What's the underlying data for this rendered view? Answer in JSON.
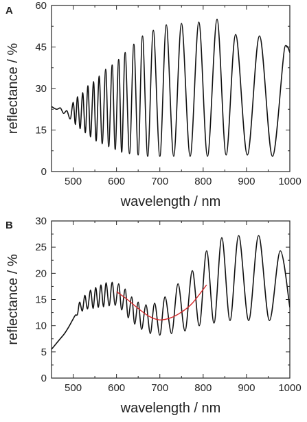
{
  "chart_data": [
    {
      "panel_label": "A",
      "type": "line",
      "title": "",
      "xlabel": "wavelength / nm",
      "ylabel": "reflectance / %",
      "xlim": [
        450,
        1000
      ],
      "ylim": [
        0,
        60
      ],
      "xticks": [
        500,
        600,
        700,
        800,
        900,
        1000
      ],
      "yticks": [
        0,
        15,
        30,
        45,
        60
      ],
      "grid": false,
      "legend": "none",
      "series": [
        {
          "color": "#111111",
          "peaks": [
            {
              "x": 450,
              "y": 23.5
            },
            {
              "x": 470,
              "y": 23
            },
            {
              "x": 485,
              "y": 22
            },
            {
              "x": 500,
              "y": 25
            },
            {
              "x": 510,
              "y": 27
            },
            {
              "x": 522,
              "y": 28.5
            },
            {
              "x": 534,
              "y": 31
            },
            {
              "x": 547,
              "y": 32.5
            },
            {
              "x": 560,
              "y": 34.5
            },
            {
              "x": 575,
              "y": 37
            },
            {
              "x": 590,
              "y": 38.5
            },
            {
              "x": 605,
              "y": 40.5
            },
            {
              "x": 620,
              "y": 43
            },
            {
              "x": 640,
              "y": 46
            },
            {
              "x": 660,
              "y": 49
            },
            {
              "x": 685,
              "y": 51
            },
            {
              "x": 715,
              "y": 53
            },
            {
              "x": 750,
              "y": 53.5
            },
            {
              "x": 790,
              "y": 54
            },
            {
              "x": 832,
              "y": 55
            },
            {
              "x": 875,
              "y": 49.5
            },
            {
              "x": 930,
              "y": 49
            },
            {
              "x": 990,
              "y": 45.5
            },
            {
              "x": 1000,
              "y": 43
            }
          ],
          "troughs": [
            {
              "x": 462,
              "y": 22.5
            },
            {
              "x": 478,
              "y": 21
            },
            {
              "x": 493,
              "y": 19
            },
            {
              "x": 505,
              "y": 17
            },
            {
              "x": 516,
              "y": 15.5
            },
            {
              "x": 528,
              "y": 14
            },
            {
              "x": 540,
              "y": 12.5
            },
            {
              "x": 553,
              "y": 11
            },
            {
              "x": 567,
              "y": 10
            },
            {
              "x": 582,
              "y": 9
            },
            {
              "x": 597,
              "y": 8
            },
            {
              "x": 612,
              "y": 7
            },
            {
              "x": 630,
              "y": 6.5
            },
            {
              "x": 650,
              "y": 6
            },
            {
              "x": 672,
              "y": 5.5
            },
            {
              "x": 700,
              "y": 5.5
            },
            {
              "x": 732,
              "y": 5.5
            },
            {
              "x": 770,
              "y": 5.5
            },
            {
              "x": 810,
              "y": 5.5
            },
            {
              "x": 853,
              "y": 6
            },
            {
              "x": 902,
              "y": 6
            },
            {
              "x": 960,
              "y": 5.5
            }
          ]
        }
      ]
    },
    {
      "panel_label": "B",
      "type": "line",
      "title": "",
      "xlabel": "wavelength / nm",
      "ylabel": "reflectance / %",
      "xlim": [
        450,
        1000
      ],
      "ylim": [
        0,
        30
      ],
      "xticks": [
        500,
        600,
        700,
        800,
        900,
        1000
      ],
      "yticks": [
        0,
        5,
        10,
        15,
        20,
        25,
        30
      ],
      "grid": false,
      "legend": "none",
      "series": [
        {
          "color": "#111111",
          "points": [
            {
              "x": 450,
              "y": 5.5
            },
            {
              "x": 460,
              "y": 6.5
            },
            {
              "x": 470,
              "y": 7.5
            },
            {
              "x": 480,
              "y": 8.5
            },
            {
              "x": 490,
              "y": 9.8
            },
            {
              "x": 498,
              "y": 11
            }
          ],
          "peaks": [
            {
              "x": 505,
              "y": 12
            },
            {
              "x": 515,
              "y": 14.5
            },
            {
              "x": 527,
              "y": 15.8
            },
            {
              "x": 540,
              "y": 16.8
            },
            {
              "x": 552,
              "y": 17.3
            },
            {
              "x": 564,
              "y": 17.8
            },
            {
              "x": 576,
              "y": 18.2
            },
            {
              "x": 590,
              "y": 18.3
            },
            {
              "x": 605,
              "y": 18
            },
            {
              "x": 620,
              "y": 17
            },
            {
              "x": 635,
              "y": 15.5
            },
            {
              "x": 650,
              "y": 14.5
            },
            {
              "x": 668,
              "y": 14
            },
            {
              "x": 688,
              "y": 14.3
            },
            {
              "x": 712,
              "y": 15.5
            },
            {
              "x": 742,
              "y": 18
            },
            {
              "x": 775,
              "y": 20.5
            },
            {
              "x": 808,
              "y": 24.3
            },
            {
              "x": 843,
              "y": 26.8
            },
            {
              "x": 882,
              "y": 27.2
            },
            {
              "x": 928,
              "y": 27.2
            },
            {
              "x": 978,
              "y": 24.3
            },
            {
              "x": 1000,
              "y": 13.5
            }
          ],
          "troughs": [
            {
              "x": 510,
              "y": 12.2
            },
            {
              "x": 521,
              "y": 12.8
            },
            {
              "x": 533,
              "y": 13.2
            },
            {
              "x": 546,
              "y": 13.3
            },
            {
              "x": 558,
              "y": 13.5
            },
            {
              "x": 570,
              "y": 13.6
            },
            {
              "x": 583,
              "y": 13.8
            },
            {
              "x": 597,
              "y": 13.9
            },
            {
              "x": 612,
              "y": 13
            },
            {
              "x": 627,
              "y": 11.5
            },
            {
              "x": 642,
              "y": 10.3
            },
            {
              "x": 658,
              "y": 9.3
            },
            {
              "x": 678,
              "y": 8.5
            },
            {
              "x": 700,
              "y": 8.2
            },
            {
              "x": 727,
              "y": 8.5
            },
            {
              "x": 758,
              "y": 9
            },
            {
              "x": 791,
              "y": 10
            },
            {
              "x": 825,
              "y": 10.5
            },
            {
              "x": 862,
              "y": 11
            },
            {
              "x": 905,
              "y": 11
            },
            {
              "x": 953,
              "y": 11
            }
          ]
        },
        {
          "color": "#d62728",
          "points": [
            {
              "x": 600,
              "y": 16.5
            },
            {
              "x": 625,
              "y": 15
            },
            {
              "x": 650,
              "y": 13.3
            },
            {
              "x": 675,
              "y": 11.8
            },
            {
              "x": 700,
              "y": 11.1
            },
            {
              "x": 725,
              "y": 11.5
            },
            {
              "x": 750,
              "y": 12.6
            },
            {
              "x": 775,
              "y": 14.3
            },
            {
              "x": 808,
              "y": 17.8
            }
          ]
        }
      ]
    }
  ]
}
